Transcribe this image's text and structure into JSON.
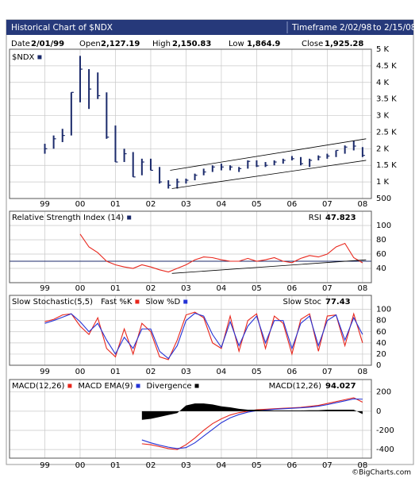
{
  "header": {
    "title": "Historical Chart of $NDX",
    "timeframe_label": "Timeframe",
    "timeframe_from": "2/02/98",
    "timeframe_to_word": "to",
    "timeframe_to": "2/15/08"
  },
  "info": [
    {
      "label": "Date",
      "value": "2/01/99"
    },
    {
      "label": "Open",
      "value": "2,127.19"
    },
    {
      "label": "High",
      "value": "2,150.83"
    },
    {
      "label": "Low",
      "value": "1,864.9"
    },
    {
      "label": "Close",
      "value": "1,925.28"
    }
  ],
  "footer": "©BigCharts.com",
  "chart_data": [
    {
      "type": "ohlc",
      "xlim": [
        1998.0,
        2008.25
      ],
      "xticks": [
        {
          "value": 1999,
          "label": "99"
        },
        {
          "value": 2000,
          "label": "00"
        },
        {
          "value": 2001,
          "label": "01"
        },
        {
          "value": 2002,
          "label": "02"
        },
        {
          "value": 2003,
          "label": "03"
        },
        {
          "value": 2004,
          "label": "04"
        },
        {
          "value": 2005,
          "label": "05"
        },
        {
          "value": 2006,
          "label": "06"
        },
        {
          "value": 2007,
          "label": "07"
        },
        {
          "value": 2008,
          "label": "08"
        }
      ],
      "ylim": [
        500,
        5000
      ],
      "yticks": [
        {
          "value": 5000,
          "label": "5 K"
        },
        {
          "value": 4500,
          "label": "4.5 K"
        },
        {
          "value": 4000,
          "label": "4 K"
        },
        {
          "value": 3500,
          "label": "3.5 K"
        },
        {
          "value": 3000,
          "label": "3 K"
        },
        {
          "value": 2500,
          "label": "2.5 K"
        },
        {
          "value": 2000,
          "label": "2 K"
        },
        {
          "value": 1500,
          "label": "1.5 K"
        },
        {
          "value": 1000,
          "label": "1 K"
        },
        500
      ],
      "grid": true,
      "x": [
        1999.0,
        1999.25,
        1999.5,
        1999.75,
        2000.0,
        2000.25,
        2000.5,
        2000.75,
        2001.0,
        2001.25,
        2001.5,
        2001.75,
        2002.0,
        2002.25,
        2002.5,
        2002.75,
        2003.0,
        2003.25,
        2003.5,
        2003.75,
        2004.0,
        2004.25,
        2004.5,
        2004.75,
        2005.0,
        2005.25,
        2005.5,
        2005.75,
        2006.0,
        2006.25,
        2006.5,
        2006.75,
        2007.0,
        2007.25,
        2007.5,
        2007.75,
        2008.0
      ],
      "series": [
        {
          "name": "$NDX",
          "color": "#1b2a6b",
          "high": [
            2150,
            2400,
            2600,
            3700,
            4800,
            4400,
            4300,
            3700,
            2700,
            2000,
            1900,
            1700,
            1700,
            1450,
            1050,
            1100,
            1100,
            1250,
            1400,
            1500,
            1550,
            1500,
            1450,
            1650,
            1650,
            1600,
            1650,
            1700,
            1780,
            1750,
            1700,
            1800,
            1850,
            1950,
            2100,
            2240,
            2050
          ],
          "low": [
            1850,
            2000,
            2200,
            2400,
            3400,
            3200,
            3500,
            2300,
            1600,
            1600,
            1150,
            1200,
            1350,
            950,
            800,
            800,
            950,
            1050,
            1200,
            1300,
            1350,
            1350,
            1300,
            1400,
            1450,
            1450,
            1500,
            1550,
            1650,
            1500,
            1450,
            1650,
            1700,
            1750,
            1850,
            1950,
            1750
          ],
          "close": [
            2000,
            2300,
            2400,
            3700,
            4400,
            3800,
            3600,
            2350,
            1600,
            1850,
            1150,
            1600,
            1350,
            1000,
            900,
            1000,
            1050,
            1200,
            1300,
            1450,
            1450,
            1450,
            1400,
            1620,
            1480,
            1500,
            1600,
            1650,
            1700,
            1550,
            1650,
            1750,
            1780,
            1950,
            2050,
            2080,
            1800
          ]
        }
      ],
      "trendlines": [
        {
          "x": [
            2002.55,
            2008.1
          ],
          "y": [
            1350,
            2300
          ]
        },
        {
          "x": [
            2002.6,
            2008.1
          ],
          "y": [
            800,
            1650
          ]
        }
      ],
      "trendline_color": "#000000"
    },
    {
      "type": "line",
      "xlim": [
        1998.0,
        2008.25
      ],
      "xticks": [
        {
          "value": 1999,
          "label": "99"
        },
        {
          "value": 2000,
          "label": "00"
        },
        {
          "value": 2001,
          "label": "01"
        },
        {
          "value": 2002,
          "label": "02"
        },
        {
          "value": 2003,
          "label": "03"
        },
        {
          "value": 2004,
          "label": "04"
        },
        {
          "value": 2005,
          "label": "05"
        },
        {
          "value": 2006,
          "label": "06"
        },
        {
          "value": 2007,
          "label": "07"
        },
        {
          "value": 2008,
          "label": "08"
        }
      ],
      "ylim": [
        20,
        120
      ],
      "yticks": [
        100,
        80,
        60,
        40
      ],
      "grid": true,
      "x": [
        2000.0,
        2000.25,
        2000.5,
        2000.75,
        2001.0,
        2001.25,
        2001.5,
        2001.75,
        2002.0,
        2002.25,
        2002.5,
        2002.75,
        2003.0,
        2003.25,
        2003.5,
        2003.75,
        2004.0,
        2004.25,
        2004.5,
        2004.75,
        2005.0,
        2005.25,
        2005.5,
        2005.75,
        2006.0,
        2006.25,
        2006.5,
        2006.75,
        2007.0,
        2007.25,
        2007.5,
        2007.75,
        2008.0
      ],
      "series": [
        {
          "name": "Relative Strength Index (14)",
          "color": "#e8261c",
          "legend_color": "#1b2a6b",
          "values": [
            88,
            70,
            62,
            50,
            45,
            42,
            40,
            45,
            42,
            38,
            35,
            40,
            45,
            52,
            56,
            55,
            52,
            50,
            50,
            54,
            50,
            52,
            55,
            50,
            48,
            54,
            58,
            56,
            60,
            70,
            75,
            55,
            47.8
          ]
        }
      ],
      "hline": 50,
      "hline_color": "#1b2a6b",
      "trendlines": [
        {
          "x": [
            2002.6,
            2008.1
          ],
          "y": [
            33,
            52
          ]
        }
      ],
      "trendline_color": "#000000",
      "readout_label": "RSI",
      "readout": 47.823
    },
    {
      "type": "line",
      "title": "Slow Stochastic(5,5)",
      "xlim": [
        1998.0,
        2008.25
      ],
      "xticks": [
        {
          "value": 1999,
          "label": "99"
        },
        {
          "value": 2000,
          "label": "00"
        },
        {
          "value": 2001,
          "label": "01"
        },
        {
          "value": 2002,
          "label": "02"
        },
        {
          "value": 2003,
          "label": "03"
        },
        {
          "value": 2004,
          "label": "04"
        },
        {
          "value": 2005,
          "label": "05"
        },
        {
          "value": 2006,
          "label": "06"
        },
        {
          "value": 2007,
          "label": "07"
        },
        {
          "value": 2008,
          "label": "08"
        }
      ],
      "ylim": [
        0,
        125
      ],
      "yticks": [
        100,
        80,
        60,
        40,
        20,
        0
      ],
      "grid": true,
      "x": [
        1999.0,
        1999.25,
        1999.5,
        1999.75,
        2000.0,
        2000.25,
        2000.5,
        2000.75,
        2001.0,
        2001.25,
        2001.5,
        2001.75,
        2002.0,
        2002.25,
        2002.5,
        2002.75,
        2003.0,
        2003.25,
        2003.5,
        2003.75,
        2004.0,
        2004.25,
        2004.5,
        2004.75,
        2005.0,
        2005.25,
        2005.5,
        2005.75,
        2006.0,
        2006.25,
        2006.5,
        2006.75,
        2007.0,
        2007.25,
        2007.5,
        2007.75,
        2008.0
      ],
      "series": [
        {
          "name": "Fast %K",
          "color": "#e8261c",
          "values": [
            78,
            82,
            90,
            92,
            70,
            55,
            85,
            30,
            15,
            65,
            20,
            75,
            60,
            15,
            10,
            45,
            90,
            95,
            85,
            40,
            30,
            88,
            25,
            80,
            92,
            30,
            88,
            75,
            20,
            82,
            92,
            25,
            88,
            90,
            35,
            92,
            40
          ]
        },
        {
          "name": "Slow %D",
          "color": "#2433d6",
          "values": [
            75,
            80,
            86,
            92,
            78,
            60,
            75,
            45,
            20,
            50,
            30,
            65,
            65,
            25,
            12,
            35,
            80,
            93,
            88,
            55,
            32,
            78,
            35,
            70,
            88,
            40,
            80,
            80,
            30,
            75,
            88,
            35,
            80,
            90,
            45,
            85,
            55
          ]
        }
      ],
      "readout_label": "Slow Stoc",
      "readout": 77.43
    },
    {
      "type": "line",
      "xlim": [
        1998.0,
        2008.25
      ],
      "xticks": [
        {
          "value": 1999,
          "label": "99"
        },
        {
          "value": 2000,
          "label": "00"
        },
        {
          "value": 2001,
          "label": "01"
        },
        {
          "value": 2002,
          "label": "02"
        },
        {
          "value": 2003,
          "label": "03"
        },
        {
          "value": 2004,
          "label": "04"
        },
        {
          "value": 2005,
          "label": "05"
        },
        {
          "value": 2006,
          "label": "06"
        },
        {
          "value": 2007,
          "label": "07"
        },
        {
          "value": 2008,
          "label": "08"
        }
      ],
      "ylim": [
        -490,
        330
      ],
      "yticks": [
        200,
        0,
        -200,
        -400
      ],
      "grid": true,
      "x": [
        2001.75,
        2002.0,
        2002.25,
        2002.5,
        2002.75,
        2003.0,
        2003.25,
        2003.5,
        2003.75,
        2004.0,
        2004.25,
        2004.5,
        2004.75,
        2005.0,
        2005.25,
        2005.5,
        2005.75,
        2006.0,
        2006.25,
        2006.5,
        2006.75,
        2007.0,
        2007.25,
        2007.5,
        2007.75,
        2008.0
      ],
      "series": [
        {
          "name": "MACD(12,26)",
          "color": "#e8261c",
          "values": [
            -340,
            -350,
            -370,
            -390,
            -400,
            -350,
            -280,
            -200,
            -130,
            -80,
            -40,
            -15,
            0,
            15,
            20,
            25,
            30,
            35,
            40,
            50,
            60,
            80,
            100,
            120,
            140,
            94
          ]
        },
        {
          "name": "MACD EMA(9)",
          "color": "#2433d6",
          "values": [
            -300,
            -330,
            -355,
            -375,
            -390,
            -380,
            -330,
            -260,
            -190,
            -120,
            -70,
            -35,
            -10,
            5,
            12,
            20,
            25,
            30,
            35,
            42,
            52,
            68,
            88,
            108,
            128,
            125
          ]
        },
        {
          "name": "Divergence",
          "color": "#000000",
          "style": "area",
          "values": [
            -90,
            -80,
            -60,
            -40,
            -20,
            60,
            80,
            80,
            70,
            50,
            40,
            25,
            15,
            15,
            10,
            8,
            8,
            8,
            8,
            10,
            10,
            15,
            15,
            15,
            15,
            -30
          ]
        }
      ],
      "readout_label": "MACD(12,26)",
      "readout": 94.027
    }
  ]
}
